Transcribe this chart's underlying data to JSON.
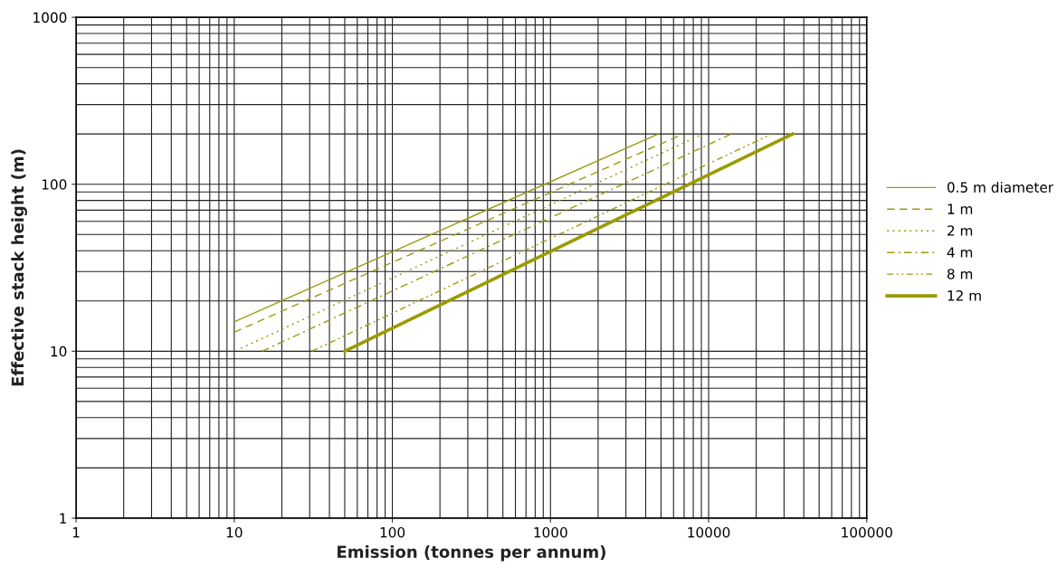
{
  "chart_data": {
    "type": "line",
    "xlabel": "Emission (tonnes per annum)",
    "ylabel": "Effective stack height (m)",
    "log": "xy",
    "grid": true,
    "legend": "right",
    "marker": "none",
    "xlim": [
      1,
      100000
    ],
    "xticks": [
      1,
      10,
      100,
      1000,
      10000,
      100000
    ],
    "ylim": [
      1,
      1000
    ],
    "yticks": [
      1,
      10,
      100,
      1000
    ],
    "series": [
      {
        "name": "0.5 m diameter",
        "color": "#9c9a10",
        "line_style": "solid",
        "x": [
          10,
          4800
        ],
        "values": [
          15,
          200
        ]
      },
      {
        "name": "1 m",
        "color": "#9c9a10",
        "line_style": "dashed",
        "x": [
          10,
          6900
        ],
        "values": [
          13,
          200
        ]
      },
      {
        "name": "2 m",
        "color": "#9c9a10",
        "line_style": "dotted",
        "x": [
          11,
          9200
        ],
        "values": [
          10.4,
          200
        ]
      },
      {
        "name": "4 m",
        "color": "#9c9a10",
        "line_style": "dashdot",
        "x": [
          15,
          13900
        ],
        "values": [
          10,
          200
        ]
      },
      {
        "name": "8 m",
        "color": "#9c9a10",
        "line_style": "dashdotdot",
        "x": [
          31,
          25000
        ],
        "values": [
          10,
          200
        ]
      },
      {
        "name": "12 m",
        "color": "#9a9a00",
        "line_style": "solid",
        "x": [
          50,
          34000
        ],
        "values": [
          10,
          200
        ]
      }
    ]
  }
}
